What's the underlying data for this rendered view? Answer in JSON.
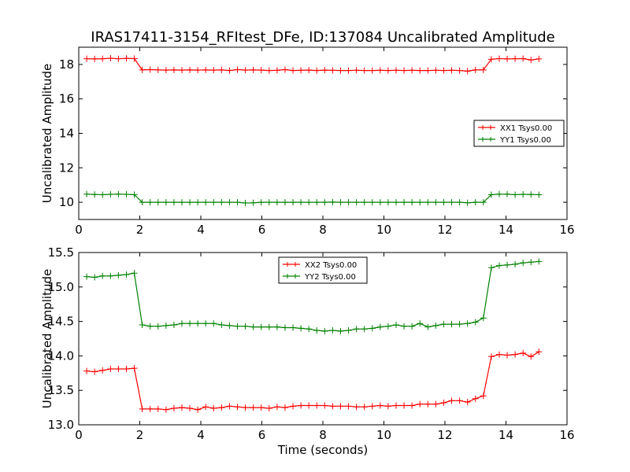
{
  "title": "IRAS17411-3154_RFItest_DFe, ID:137084 Uncalibrated Amplitude",
  "chart_data": [
    {
      "type": "line",
      "ylabel": "Uncalibrated Amplitude",
      "xlabel": "",
      "xlim": [
        0,
        16
      ],
      "ylim": [
        9,
        19
      ],
      "xticks": [
        0,
        2,
        4,
        6,
        8,
        10,
        12,
        14,
        16
      ],
      "yticks": [
        10,
        12,
        14,
        16,
        18
      ],
      "legend_position": "center-right",
      "grid": false,
      "x": [
        0.26,
        0.52,
        0.78,
        1.04,
        1.3,
        1.56,
        1.82,
        2.08,
        2.34,
        2.6,
        2.86,
        3.12,
        3.38,
        3.64,
        3.9,
        4.16,
        4.42,
        4.68,
        4.94,
        5.2,
        5.46,
        5.72,
        5.98,
        6.24,
        6.5,
        6.76,
        7.02,
        7.28,
        7.54,
        7.8,
        8.06,
        8.32,
        8.58,
        8.84,
        9.1,
        9.36,
        9.62,
        9.88,
        10.14,
        10.4,
        10.66,
        10.92,
        11.18,
        11.44,
        11.7,
        11.96,
        12.22,
        12.48,
        12.74,
        13.0,
        13.26,
        13.52,
        13.78,
        14.04,
        14.3,
        14.56,
        14.82,
        15.08
      ],
      "series": [
        {
          "name": "XX1 Tsys0.00",
          "color": "#ff0000",
          "values": [
            18.33,
            18.32,
            18.33,
            18.36,
            18.33,
            18.35,
            18.34,
            17.68,
            17.7,
            17.68,
            17.67,
            17.68,
            17.67,
            17.68,
            17.67,
            17.68,
            17.67,
            17.68,
            17.65,
            17.7,
            17.67,
            17.68,
            17.67,
            17.65,
            17.66,
            17.7,
            17.65,
            17.66,
            17.67,
            17.65,
            17.67,
            17.66,
            17.65,
            17.65,
            17.66,
            17.65,
            17.65,
            17.66,
            17.65,
            17.66,
            17.65,
            17.66,
            17.65,
            17.65,
            17.66,
            17.65,
            17.66,
            17.65,
            17.61,
            17.68,
            17.68,
            18.3,
            18.34,
            18.32,
            18.33,
            18.34,
            18.26,
            18.32
          ]
        },
        {
          "name": "YY1 Tsys0.00",
          "color": "#008000",
          "values": [
            10.47,
            10.45,
            10.44,
            10.46,
            10.47,
            10.46,
            10.44,
            10.0,
            10.0,
            10.0,
            10.0,
            10.0,
            10.0,
            10.0,
            10.0,
            10.0,
            10.0,
            10.0,
            10.0,
            10.0,
            9.96,
            9.97,
            10.0,
            10.0,
            10.0,
            10.0,
            10.0,
            10.0,
            10.0,
            10.0,
            10.0,
            10.01,
            10.0,
            10.0,
            10.0,
            10.0,
            10.0,
            10.0,
            10.0,
            10.0,
            10.0,
            10.0,
            10.0,
            10.0,
            10.0,
            10.0,
            10.0,
            10.0,
            9.97,
            10.0,
            10.0,
            10.44,
            10.47,
            10.47,
            10.44,
            10.46,
            10.45,
            10.44
          ]
        }
      ]
    },
    {
      "type": "line",
      "ylabel": "Uncalibrated Amplitude",
      "xlabel": "Time (seconds)",
      "xlim": [
        0,
        16
      ],
      "ylim": [
        13.0,
        15.5
      ],
      "xticks": [
        0,
        2,
        4,
        6,
        8,
        10,
        12,
        14,
        16
      ],
      "yticks": [
        13.0,
        13.5,
        14.0,
        14.5,
        15.0,
        15.5
      ],
      "ytick_labels": [
        "13.0",
        "13.5",
        "14.0",
        "14.5",
        "15.0",
        "15.5"
      ],
      "legend_position": "top-center",
      "grid": false,
      "x": [
        0.26,
        0.52,
        0.78,
        1.04,
        1.3,
        1.56,
        1.82,
        2.08,
        2.34,
        2.6,
        2.86,
        3.12,
        3.38,
        3.64,
        3.9,
        4.16,
        4.42,
        4.68,
        4.94,
        5.2,
        5.46,
        5.72,
        5.98,
        6.24,
        6.5,
        6.76,
        7.02,
        7.28,
        7.54,
        7.8,
        8.06,
        8.32,
        8.58,
        8.84,
        9.1,
        9.36,
        9.62,
        9.88,
        10.14,
        10.4,
        10.66,
        10.92,
        11.18,
        11.44,
        11.7,
        11.96,
        12.22,
        12.48,
        12.74,
        13.0,
        13.26,
        13.52,
        13.78,
        14.04,
        14.3,
        14.56,
        14.82,
        15.08
      ],
      "series": [
        {
          "name": "XX2 Tsys0.00",
          "color": "#ff0000",
          "values": [
            13.78,
            13.77,
            13.79,
            13.81,
            13.81,
            13.81,
            13.82,
            13.23,
            13.23,
            13.23,
            13.22,
            13.24,
            13.25,
            13.24,
            13.22,
            13.26,
            13.24,
            13.25,
            13.27,
            13.26,
            13.25,
            13.25,
            13.25,
            13.24,
            13.26,
            13.25,
            13.27,
            13.28,
            13.28,
            13.28,
            13.28,
            13.27,
            13.27,
            13.27,
            13.26,
            13.26,
            13.27,
            13.28,
            13.27,
            13.28,
            13.28,
            13.28,
            13.3,
            13.3,
            13.3,
            13.32,
            13.35,
            13.35,
            13.33,
            13.38,
            13.42,
            13.99,
            14.02,
            14.01,
            14.02,
            14.04,
            13.99,
            14.06
          ]
        },
        {
          "name": "YY2 Tsys0.00",
          "color": "#008000",
          "values": [
            15.15,
            15.14,
            15.16,
            15.16,
            15.17,
            15.18,
            15.2,
            14.45,
            14.43,
            14.43,
            14.44,
            14.45,
            14.47,
            14.47,
            14.47,
            14.47,
            14.47,
            14.45,
            14.44,
            14.43,
            14.43,
            14.42,
            14.42,
            14.42,
            14.42,
            14.41,
            14.41,
            14.4,
            14.39,
            14.37,
            14.36,
            14.37,
            14.36,
            14.37,
            14.39,
            14.39,
            14.4,
            14.42,
            14.43,
            14.45,
            14.43,
            14.43,
            14.47,
            14.42,
            14.44,
            14.46,
            14.46,
            14.46,
            14.47,
            14.49,
            14.55,
            15.28,
            15.31,
            15.32,
            15.33,
            15.35,
            15.36,
            15.37
          ]
        }
      ]
    }
  ]
}
